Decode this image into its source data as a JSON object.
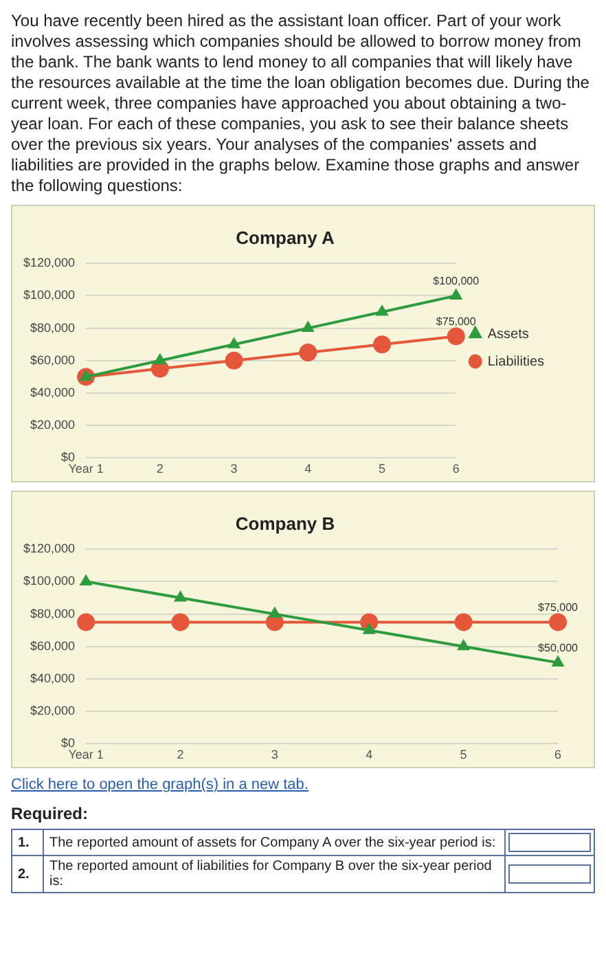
{
  "chart_data": [
    {
      "type": "line",
      "title": "Company A",
      "annotations": [
        "You have recently been hired as the assistant loan officer. Part of your work involves assessing which companies should be allowed to borrow money from the bank. The bank wants to lend money to all companies that will likely have the resources available at the time the loan obligation becomes due. During the current week, three companies have approached you about obtaining a two-year loan. For each of these companies, you ask to see their balance sheets over the previous six years. Your analyses of the companies' assets and liabilities are provided in the graphs below. Examine those graphs and answer the following questions:"
      ],
      "categories": [
        "Year 1",
        "2",
        "3",
        "4",
        "5",
        "6"
      ],
      "series": [
        {
          "name": "Assets",
          "color": "#2e9b3e",
          "marker": "triangle",
          "values": [
            50000,
            60000,
            70000,
            80000,
            90000,
            100000
          ],
          "value_labels": [
            null,
            null,
            null,
            null,
            null,
            "$100,000"
          ]
        },
        {
          "name": "Liabilities",
          "color": "#e5573a",
          "marker": "circle",
          "values": [
            50000,
            55000,
            60000,
            65000,
            70000,
            75000
          ],
          "value_labels": [
            null,
            null,
            null,
            null,
            null,
            "$75,000"
          ]
        }
      ],
      "ylim": [
        0,
        120000
      ],
      "yticks": [
        {
          "value": 0,
          "label": "$0"
        },
        {
          "value": 20000,
          "label": "$20,000"
        },
        {
          "value": 40000,
          "label": "$40,000"
        },
        {
          "value": 60000,
          "label": "$60,000"
        },
        {
          "value": 80000,
          "label": "$80,000"
        },
        {
          "value": 100000,
          "label": "$100,000"
        },
        {
          "value": 120000,
          "label": "$120,000"
        }
      ],
      "grid": "y",
      "legend": "right"
    },
    {
      "type": "line",
      "title": "Company B",
      "annotations": [
        "Click here to open the graph(s) in a new tab.",
        "Required:",
        "1.",
        "The reported amount of assets for Company A over the six-year period is:",
        "2.",
        "The reported amount of liabilities for Company B over the six-year period is:"
      ],
      "categories": [
        "Year 1",
        "2",
        "3",
        "4",
        "5",
        "6"
      ],
      "series": [
        {
          "color": "#2e9b3e",
          "marker": "triangle",
          "values": [
            100000,
            90000,
            80000,
            70000,
            60000,
            50000
          ],
          "value_labels": [
            null,
            null,
            null,
            null,
            null,
            "$50,000"
          ]
        },
        {
          "color": "#e5573a",
          "marker": "circle",
          "values": [
            75000,
            75000,
            75000,
            75000,
            75000,
            75000
          ],
          "value_labels": [
            null,
            null,
            null,
            null,
            null,
            "$75,000"
          ]
        }
      ],
      "ylim": [
        0,
        120000
      ],
      "yticks": [
        {
          "value": 0,
          "label": "$0"
        },
        {
          "value": 20000,
          "label": "$20,000"
        },
        {
          "value": 40000,
          "label": "$40,000"
        },
        {
          "value": 60000,
          "label": "$60,000"
        },
        {
          "value": 80000,
          "label": "$80,000"
        },
        {
          "value": 100000,
          "label": "$100,000"
        },
        {
          "value": 120000,
          "label": "$120,000"
        }
      ],
      "grid": "y"
    }
  ]
}
